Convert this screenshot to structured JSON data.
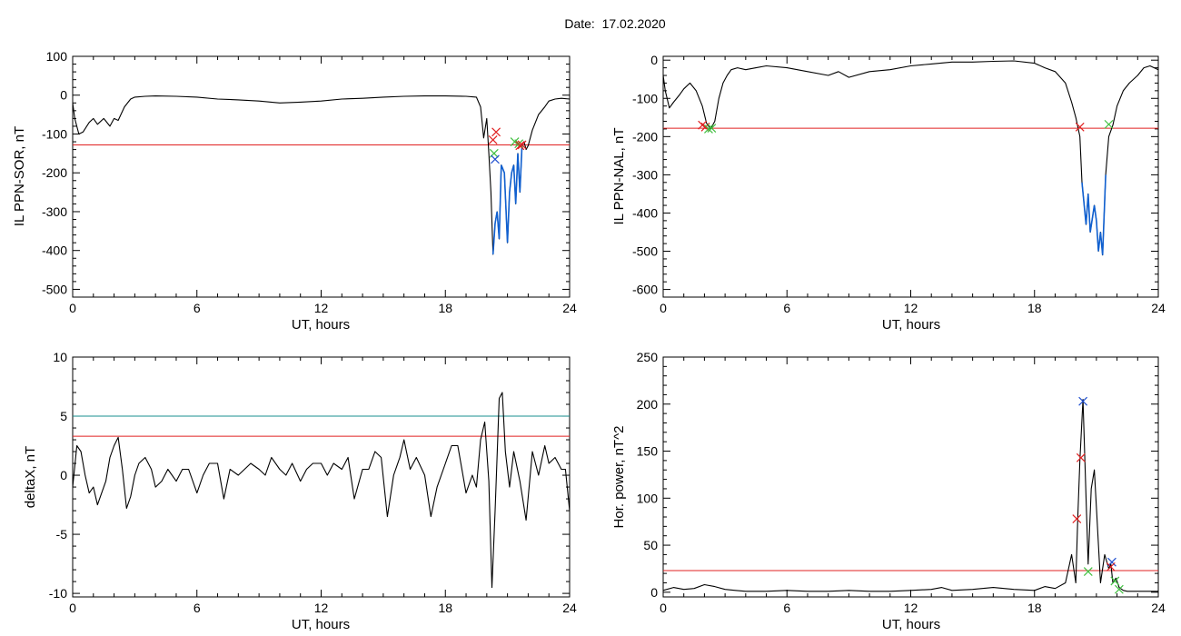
{
  "title": {
    "label": "Date:",
    "value": "17.02.2020"
  },
  "colors": {
    "trace": "#000000",
    "threshold_red": "#e02020",
    "threshold_teal": "#1a8f8f",
    "highlight_blue": "#1060d0",
    "marker_red": "#d02020",
    "marker_green": "#40c040",
    "marker_blue": "#2050d0"
  },
  "chart_data": [
    {
      "id": "il-sor",
      "type": "line",
      "xlabel": "UT, hours",
      "ylabel": "IL PPN-SOR, nT",
      "xlim": [
        0,
        24
      ],
      "ylim": [
        -520,
        100
      ],
      "xticks": [
        0,
        6,
        12,
        18,
        24
      ],
      "yticks": [
        100,
        0,
        -100,
        -200,
        -300,
        -400,
        -500
      ],
      "grid": false,
      "series": [
        {
          "x": [
            0,
            0.1,
            0.3,
            0.5,
            0.8,
            1.0,
            1.2,
            1.5,
            1.8,
            2.0,
            2.2,
            2.5,
            2.8,
            3.0,
            3.5,
            4.0,
            5.0,
            6.0,
            7.0,
            8.0,
            9.0,
            10.0,
            11.0,
            12.0,
            13.0,
            14.0,
            15.0,
            16.0,
            17.0,
            18.0,
            19.0,
            19.5,
            19.7,
            19.85,
            20.0,
            20.1,
            20.2,
            20.3,
            20.4,
            20.5,
            20.6,
            20.7,
            20.85,
            21.0,
            21.1,
            21.2,
            21.3,
            21.4,
            21.5,
            21.6,
            21.7,
            21.8,
            21.9,
            22.0,
            22.2,
            22.5,
            22.8,
            23.0,
            23.3,
            23.6,
            24.0
          ],
          "y": [
            -20,
            -60,
            -100,
            -95,
            -70,
            -60,
            -75,
            -60,
            -80,
            -60,
            -65,
            -30,
            -10,
            -5,
            -3,
            -2,
            -3,
            -5,
            -10,
            -12,
            -15,
            -20,
            -18,
            -15,
            -10,
            -8,
            -5,
            -3,
            -2,
            -2,
            -3,
            -5,
            -30,
            -110,
            -60,
            -150,
            -250,
            -410,
            -330,
            -300,
            -370,
            -180,
            -200,
            -380,
            -250,
            -200,
            -180,
            -280,
            -150,
            -250,
            -130,
            -120,
            -140,
            -130,
            -90,
            -50,
            -30,
            -15,
            -10,
            -8,
            -10
          ]
        }
      ],
      "highlight": {
        "x_from": 20.25,
        "x_to": 21.85
      },
      "thresholds": [
        {
          "y": -128,
          "color": "red"
        }
      ],
      "markers": [
        {
          "x": 20.45,
          "y": -95,
          "color": "red",
          "shape": "x"
        },
        {
          "x": 20.3,
          "y": -115,
          "color": "red",
          "shape": "x"
        },
        {
          "x": 20.35,
          "y": -150,
          "color": "green",
          "shape": "x"
        },
        {
          "x": 20.4,
          "y": -165,
          "color": "blue",
          "shape": "x"
        },
        {
          "x": 21.35,
          "y": -120,
          "color": "green",
          "shape": "x"
        },
        {
          "x": 21.55,
          "y": -125,
          "color": "green",
          "shape": "x"
        },
        {
          "x": 21.6,
          "y": -130,
          "color": "red",
          "shape": "x"
        },
        {
          "x": 21.7,
          "y": -128,
          "color": "red",
          "shape": "x"
        }
      ]
    },
    {
      "id": "il-nal",
      "type": "line",
      "xlabel": "UT, hours",
      "ylabel": "IL PPN-NAL, nT",
      "xlim": [
        0,
        24
      ],
      "ylim": [
        -620,
        10
      ],
      "xticks": [
        0,
        6,
        12,
        18,
        24
      ],
      "yticks": [
        0,
        -100,
        -200,
        -300,
        -400,
        -500,
        -600
      ],
      "grid": false,
      "series": [
        {
          "x": [
            0,
            0.1,
            0.3,
            0.5,
            0.8,
            1.0,
            1.3,
            1.6,
            1.9,
            2.1,
            2.3,
            2.5,
            2.7,
            2.9,
            3.1,
            3.3,
            3.6,
            4.0,
            4.5,
            5.0,
            6.0,
            7.0,
            8.0,
            8.5,
            9.0,
            10.0,
            11.0,
            12.0,
            13.0,
            14.0,
            15.0,
            16.0,
            17.0,
            18.0,
            18.5,
            19.0,
            19.5,
            19.8,
            20.0,
            20.2,
            20.3,
            20.5,
            20.6,
            20.7,
            20.9,
            21.0,
            21.1,
            21.2,
            21.3,
            21.45,
            21.6,
            21.8,
            22.0,
            22.3,
            22.6,
            23.0,
            23.3,
            23.6,
            24.0
          ],
          "y": [
            -40,
            -80,
            -125,
            -110,
            -90,
            -75,
            -60,
            -80,
            -120,
            -165,
            -180,
            -160,
            -100,
            -60,
            -40,
            -25,
            -20,
            -25,
            -20,
            -15,
            -20,
            -30,
            -40,
            -30,
            -45,
            -30,
            -25,
            -15,
            -10,
            -5,
            -5,
            -3,
            -2,
            -8,
            -20,
            -30,
            -60,
            -110,
            -150,
            -200,
            -320,
            -430,
            -350,
            -450,
            -380,
            -420,
            -500,
            -450,
            -510,
            -300,
            -200,
            -170,
            -120,
            -80,
            -60,
            -40,
            -20,
            -15,
            -25
          ]
        }
      ],
      "highlight": {
        "x_from": 20.25,
        "x_to": 21.5
      },
      "thresholds": [
        {
          "y": -178,
          "color": "red"
        }
      ],
      "markers": [
        {
          "x": 1.9,
          "y": -170,
          "color": "red",
          "shape": "x"
        },
        {
          "x": 2.05,
          "y": -175,
          "color": "red",
          "shape": "x"
        },
        {
          "x": 2.2,
          "y": -180,
          "color": "green",
          "shape": "x"
        },
        {
          "x": 2.35,
          "y": -178,
          "color": "green",
          "shape": "x"
        },
        {
          "x": 20.2,
          "y": -175,
          "color": "red",
          "shape": "x"
        },
        {
          "x": 21.6,
          "y": -168,
          "color": "green",
          "shape": "x"
        }
      ]
    },
    {
      "id": "deltax",
      "type": "line",
      "xlabel": "UT, hours",
      "ylabel": "deltaX, nT",
      "xlim": [
        0,
        24
      ],
      "ylim": [
        -10.3,
        10
      ],
      "xticks": [
        0,
        6,
        12,
        18,
        24
      ],
      "yticks": [
        10,
        5,
        0,
        -5,
        -10
      ],
      "grid": false,
      "series": [
        {
          "x": [
            0,
            0.2,
            0.4,
            0.6,
            0.8,
            1.0,
            1.2,
            1.4,
            1.6,
            1.8,
            2.0,
            2.2,
            2.4,
            2.6,
            2.8,
            3.0,
            3.2,
            3.5,
            3.8,
            4.0,
            4.3,
            4.6,
            5.0,
            5.3,
            5.6,
            6.0,
            6.3,
            6.6,
            7.0,
            7.3,
            7.6,
            8.0,
            8.3,
            8.6,
            9.0,
            9.3,
            9.6,
            10.0,
            10.3,
            10.6,
            11.0,
            11.3,
            11.6,
            12.0,
            12.3,
            12.6,
            13.0,
            13.3,
            13.6,
            14.0,
            14.3,
            14.6,
            14.9,
            15.2,
            15.5,
            15.8,
            16.0,
            16.3,
            16.6,
            17.0,
            17.3,
            17.6,
            18.0,
            18.3,
            18.6,
            19.0,
            19.3,
            19.5,
            19.7,
            19.9,
            20.1,
            20.25,
            20.4,
            20.6,
            20.75,
            20.9,
            21.1,
            21.3,
            21.6,
            21.9,
            22.2,
            22.5,
            22.8,
            23.0,
            23.3,
            23.6,
            23.8,
            24.0
          ],
          "y": [
            -1,
            2.5,
            2,
            0,
            -1.5,
            -1,
            -2.5,
            -1.5,
            -0.5,
            1.5,
            2.5,
            3.2,
            0.5,
            -2.8,
            -1.8,
            0,
            1,
            1.5,
            0.5,
            -1,
            -0.5,
            0.5,
            -0.5,
            0.5,
            0.5,
            -1.5,
            0,
            1,
            1,
            -2,
            0.5,
            0,
            0.5,
            1,
            0.5,
            0,
            1.5,
            0.5,
            0,
            1,
            -0.5,
            0.5,
            1,
            1,
            0,
            1,
            0.5,
            1.5,
            -2,
            0.5,
            0.5,
            2,
            1.5,
            -3.5,
            0,
            1.5,
            3,
            0.5,
            1.5,
            0,
            -3.5,
            -1,
            1,
            2.5,
            2.5,
            -1.5,
            0,
            -1,
            3,
            4.5,
            -0.5,
            -9.5,
            -3,
            6.5,
            7,
            2,
            -1,
            2,
            -0.5,
            -3.8,
            2,
            0,
            2.5,
            1,
            1.5,
            0.5,
            0.5,
            -3
          ]
        }
      ],
      "thresholds": [
        {
          "y": 5,
          "color": "teal"
        },
        {
          "y": 3.3,
          "color": "red"
        }
      ],
      "markers": []
    },
    {
      "id": "hor-power",
      "type": "line",
      "xlabel": "UT, hours",
      "ylabel": "Hor. power, nT^2",
      "xlim": [
        0,
        24
      ],
      "ylim": [
        -5,
        250
      ],
      "xticks": [
        0,
        6,
        12,
        18,
        24
      ],
      "yticks": [
        250,
        200,
        150,
        100,
        50,
        0
      ],
      "grid": false,
      "series": [
        {
          "x": [
            0,
            0.5,
            1.0,
            1.5,
            2.0,
            2.5,
            3.0,
            3.5,
            4.0,
            5.0,
            6.0,
            7.0,
            8.0,
            9.0,
            10.0,
            11.0,
            12.0,
            13.0,
            13.5,
            14.0,
            15.0,
            16.0,
            17.0,
            18.0,
            18.5,
            19.0,
            19.5,
            19.8,
            20.0,
            20.1,
            20.2,
            20.35,
            20.5,
            20.6,
            20.75,
            20.9,
            21.0,
            21.2,
            21.4,
            21.6,
            21.7,
            21.8,
            21.95,
            22.1,
            22.3,
            22.5,
            23.0,
            23.5,
            24.0
          ],
          "y": [
            2,
            5,
            3,
            4,
            8,
            6,
            3,
            2,
            1,
            1,
            2,
            1,
            1,
            2,
            1,
            1,
            2,
            3,
            5,
            2,
            3,
            5,
            3,
            2,
            6,
            4,
            10,
            40,
            10,
            80,
            140,
            205,
            100,
            30,
            110,
            130,
            90,
            10,
            40,
            25,
            30,
            10,
            15,
            5,
            2,
            1,
            1,
            1,
            1
          ]
        }
      ],
      "thresholds": [
        {
          "y": 23,
          "color": "red"
        }
      ],
      "markers": [
        {
          "x": 20.05,
          "y": 78,
          "color": "red",
          "shape": "x"
        },
        {
          "x": 20.25,
          "y": 143,
          "color": "red",
          "shape": "x"
        },
        {
          "x": 20.35,
          "y": 203,
          "color": "blue",
          "shape": "x"
        },
        {
          "x": 20.6,
          "y": 22,
          "color": "green",
          "shape": "x"
        },
        {
          "x": 21.75,
          "y": 32,
          "color": "blue",
          "shape": "x"
        },
        {
          "x": 21.7,
          "y": 27,
          "color": "red",
          "shape": "x"
        },
        {
          "x": 21.9,
          "y": 12,
          "color": "green",
          "shape": "x"
        },
        {
          "x": 22.1,
          "y": 3,
          "color": "green",
          "shape": "x"
        }
      ]
    }
  ]
}
